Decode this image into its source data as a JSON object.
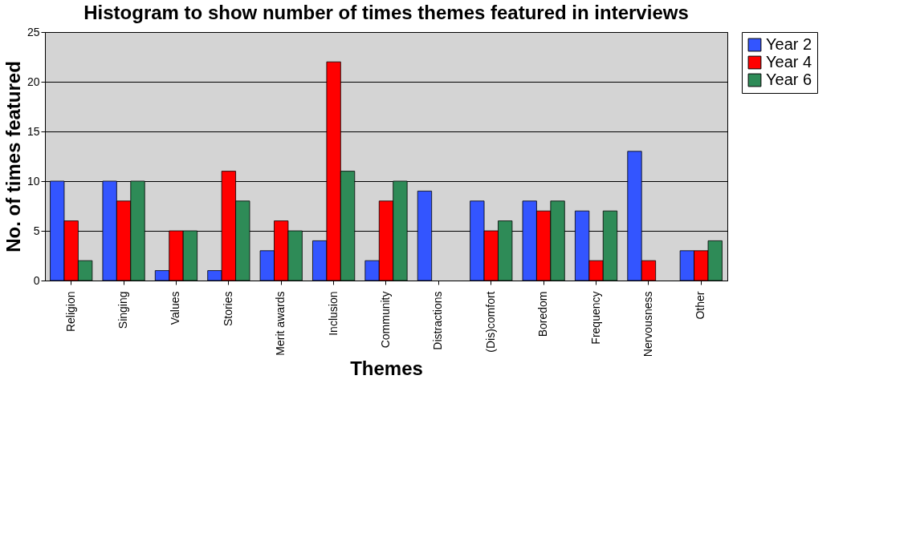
{
  "chart_data": {
    "type": "bar",
    "title": "Histogram to show number of times themes featured in interviews",
    "xlabel": "Themes",
    "ylabel": "No. of times featured",
    "categories": [
      "Religion",
      "Singing",
      "Values",
      "Stories",
      "Merit awards",
      "Inclusion",
      "Community",
      "Distractions",
      "(Dis)comfort",
      "Boredom",
      "Frequency",
      "Nervousness",
      "Other"
    ],
    "series": [
      {
        "name": "Year 2",
        "color": "#3355ff",
        "values": [
          10,
          10,
          1,
          1,
          3,
          4,
          2,
          9,
          8,
          8,
          7,
          13,
          3
        ]
      },
      {
        "name": "Year 4",
        "color": "#ff0000",
        "values": [
          6,
          8,
          5,
          11,
          6,
          22,
          8,
          null,
          5,
          7,
          2,
          2,
          3
        ]
      },
      {
        "name": "Year 6",
        "color": "#2e8b57",
        "values": [
          2,
          10,
          5,
          8,
          5,
          11,
          10,
          null,
          6,
          8,
          7,
          null,
          4
        ]
      }
    ],
    "ylim": [
      0,
      25
    ],
    "yticks": [
      0,
      5,
      10,
      15,
      20,
      25
    ],
    "grid": "y",
    "legend": "right"
  }
}
